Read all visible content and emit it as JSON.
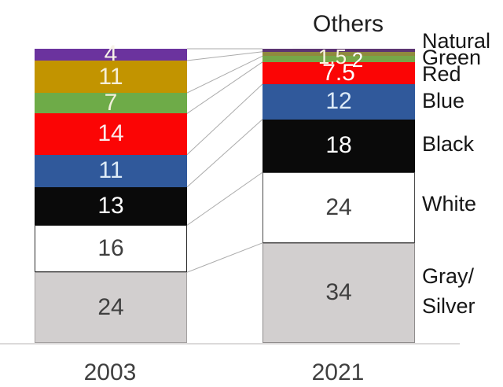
{
  "chart_data": {
    "type": "bar",
    "subtype": "stacked-100-percent-comparison",
    "top_label": "Others",
    "x_categories": [
      "2003",
      "2021"
    ],
    "right_labels": [
      "Natural",
      "Green",
      "Red",
      "Blue",
      "Black",
      "White",
      "Gray/\nSilver"
    ],
    "segments": [
      {
        "name": "Others",
        "values": [
          4,
          1
        ],
        "labels": [
          "4",
          ""
        ],
        "colors": [
          "#6B339E",
          "#5C3472"
        ],
        "text_colors": [
          "#F7F3E8",
          "#FFFFFF"
        ],
        "border_colors": [
          "",
          ""
        ]
      },
      {
        "name": "Natural",
        "values": [
          11,
          1.5
        ],
        "labels": [
          "11",
          "1.5"
        ],
        "colors": [
          "#C29400",
          "#8F8A3E"
        ],
        "text_colors": [
          "#F6EFD8",
          "#FAF5E2"
        ],
        "border_colors": [
          "",
          ""
        ]
      },
      {
        "name": "Green",
        "values": [
          7,
          2
        ],
        "labels": [
          "7",
          "2"
        ],
        "colors": [
          "#6EAB48",
          "#76A748"
        ],
        "text_colors": [
          "#F2F0DC",
          "#FFFFFF"
        ],
        "border_colors": [
          "",
          ""
        ]
      },
      {
        "name": "Red",
        "values": [
          14,
          7.5
        ],
        "labels": [
          "14",
          "7.5"
        ],
        "colors": [
          "#FB0505",
          "#FB0505"
        ],
        "text_colors": [
          "#FBE9E9",
          "#FFFFFF"
        ],
        "border_colors": [
          "",
          ""
        ]
      },
      {
        "name": "Blue",
        "values": [
          11,
          12
        ],
        "labels": [
          "11",
          "12"
        ],
        "colors": [
          "#30599B",
          "#30599B"
        ],
        "text_colors": [
          "#DDEBF7",
          "#DDEBF7"
        ],
        "border_colors": [
          "",
          ""
        ]
      },
      {
        "name": "Black",
        "values": [
          13,
          18
        ],
        "labels": [
          "13",
          "18"
        ],
        "colors": [
          "#0A0A0A",
          "#0A0A0A"
        ],
        "text_colors": [
          "#FFFFFF",
          "#FFFFFF"
        ],
        "border_colors": [
          "",
          ""
        ]
      },
      {
        "name": "White",
        "values": [
          16,
          24
        ],
        "labels": [
          "16",
          "24"
        ],
        "colors": [
          "#FFFFFF",
          "#FFFFFF"
        ],
        "text_colors": [
          "#3F3F3F",
          "#3F3F3F"
        ],
        "border_colors": [
          "#2A2A2A",
          "#4A4A4A"
        ]
      },
      {
        "name": "Gray/Silver",
        "values": [
          24,
          34
        ],
        "labels": [
          "24",
          "34"
        ],
        "colors": [
          "#D2CFCF",
          "#D2CFCF"
        ],
        "text_colors": [
          "#3F3F3F",
          "#3F3F3F"
        ],
        "border_colors": [
          "#A3A0A0",
          "#8F8C8C"
        ]
      }
    ],
    "ui_colors": {
      "connector_line": "#ABABAB",
      "axis_line": "#DCDADA",
      "year_text": "#3F3F3F",
      "category_text": "#161616"
    }
  }
}
